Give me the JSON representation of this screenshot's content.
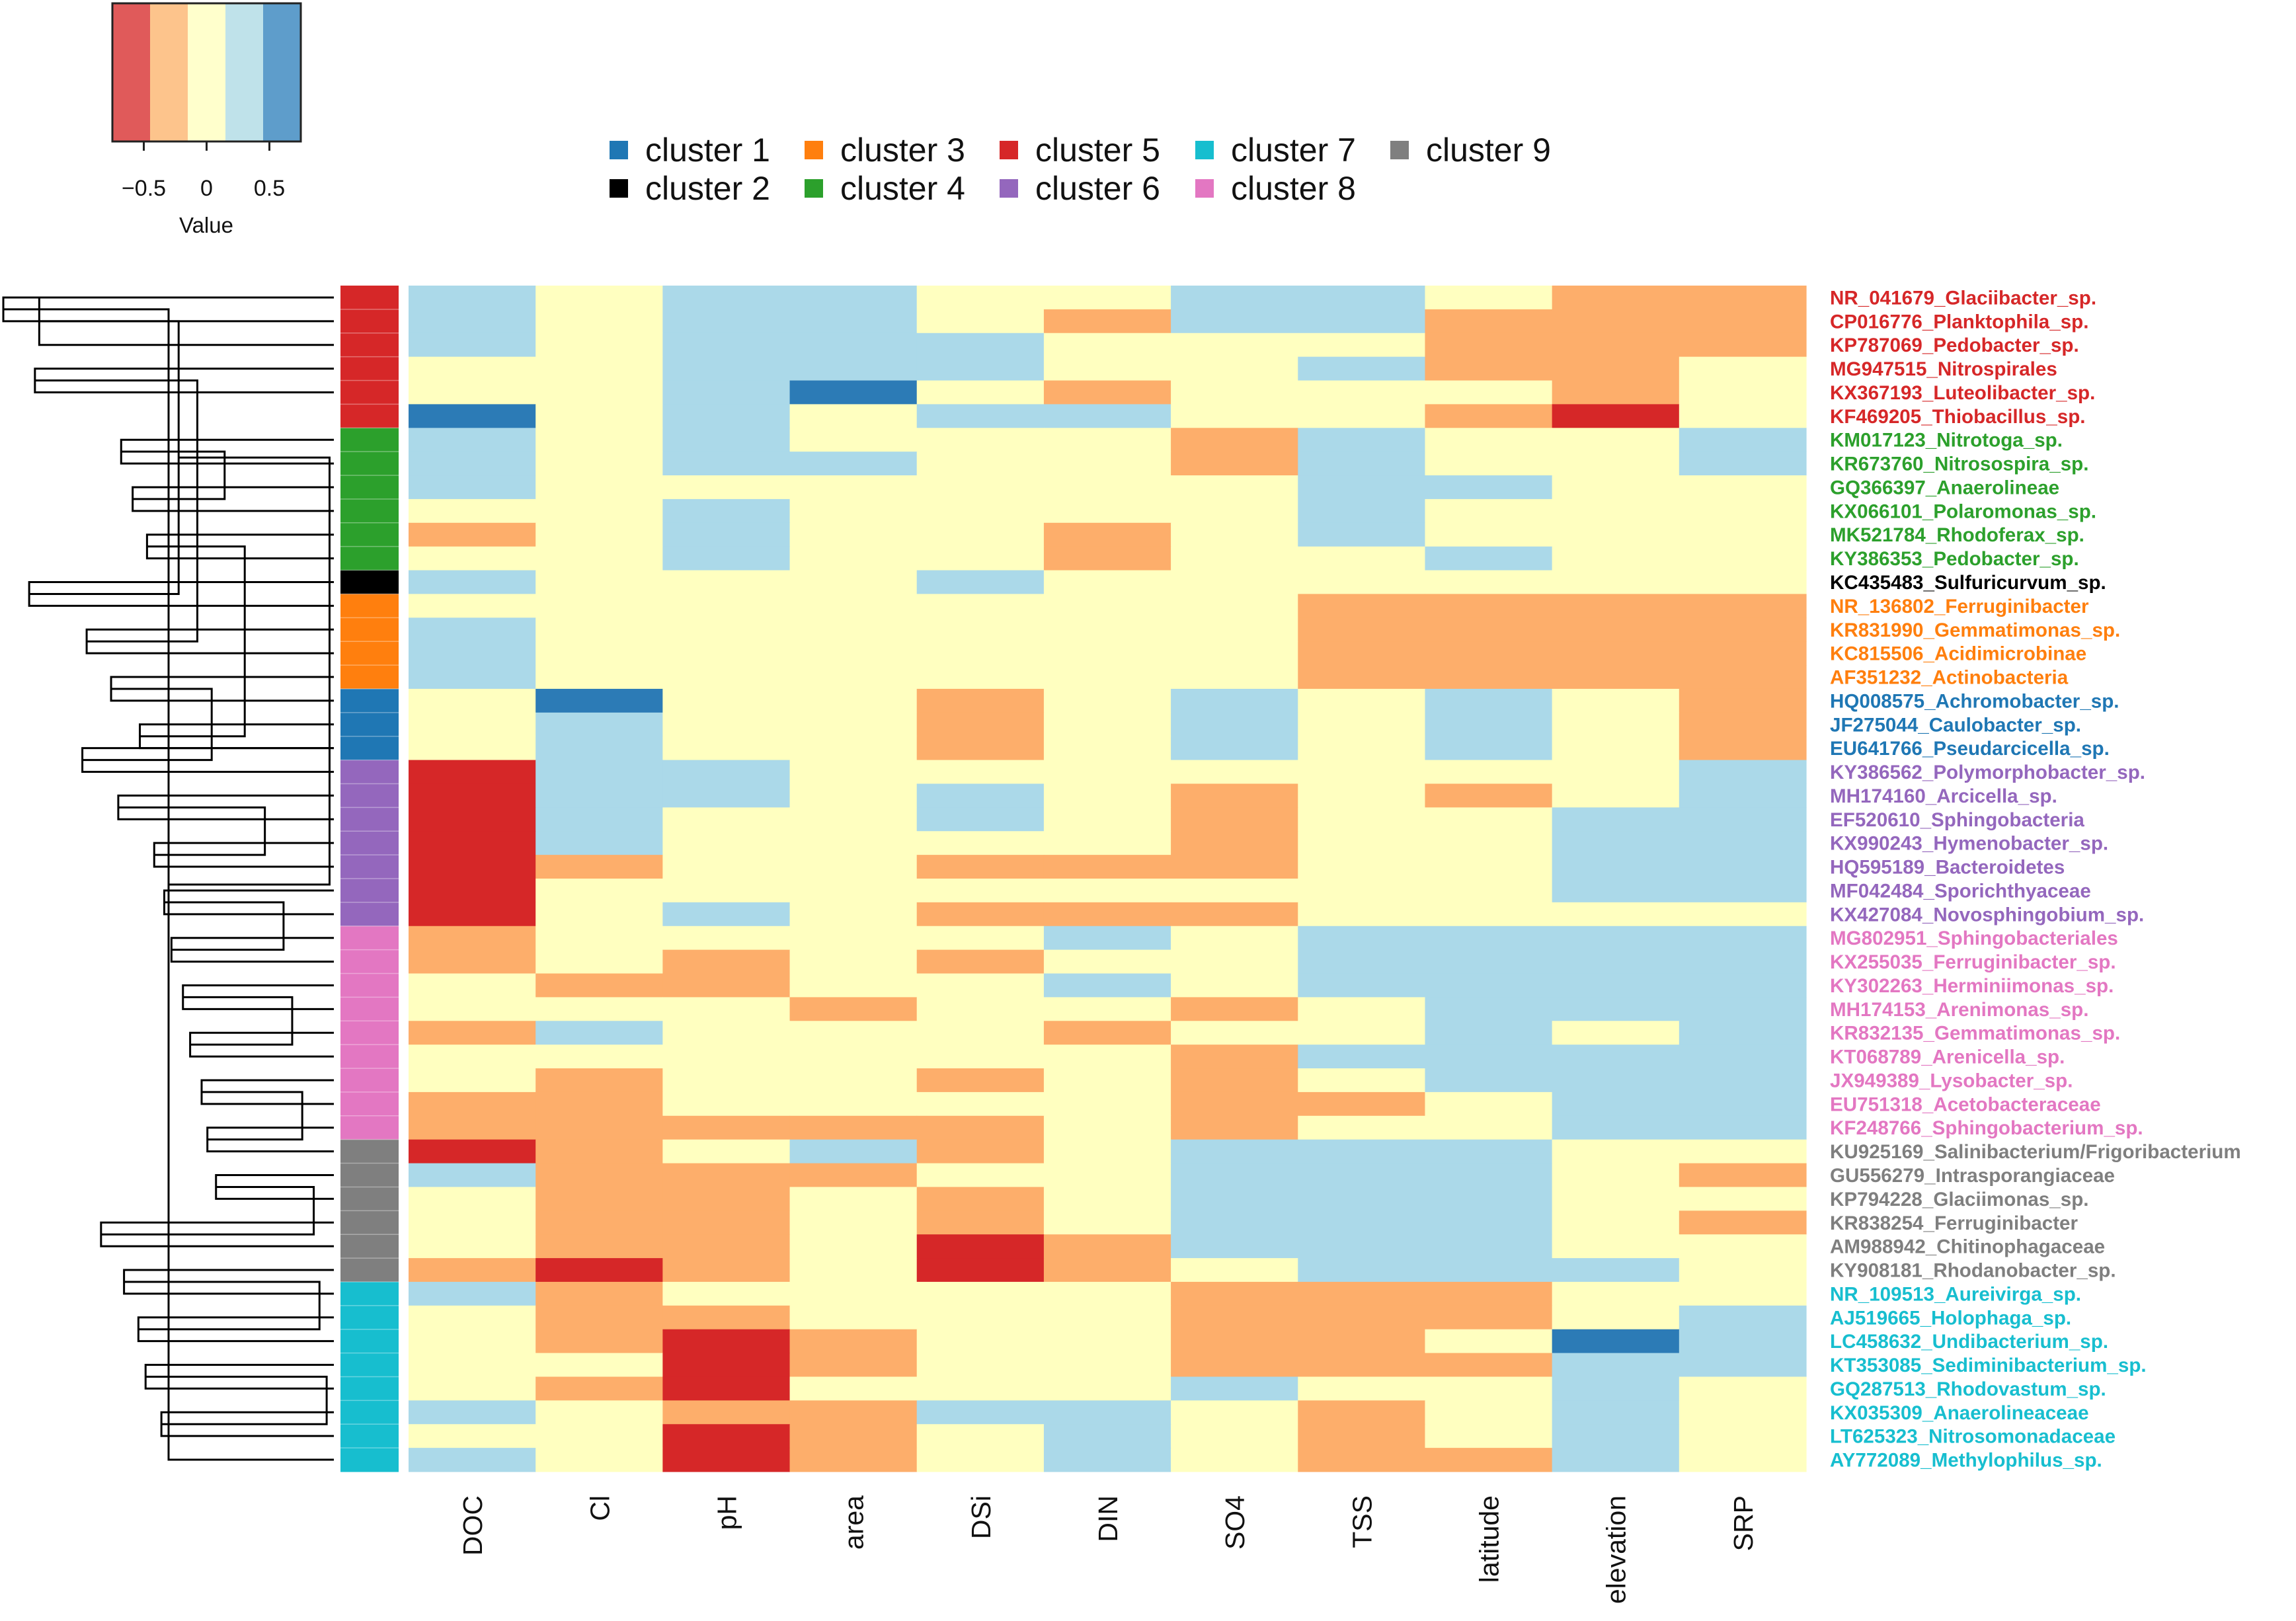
{
  "chart_data": {
    "type": "heatmap",
    "title": "",
    "colorkey": {
      "title": "Value",
      "tick_labels": [
        "−0.5",
        "0",
        "0.5"
      ],
      "ticks": [
        -0.5,
        0,
        0.5
      ],
      "range": [
        -0.75,
        0.75
      ],
      "bins": [
        {
          "from": -0.75,
          "to": -0.45,
          "color": "#e05a5a"
        },
        {
          "from": -0.45,
          "to": -0.15,
          "color": "#fdc48c"
        },
        {
          "from": -0.15,
          "to": 0.15,
          "color": "#ffffcc"
        },
        {
          "from": 0.15,
          "to": 0.45,
          "color": "#bfe2ea"
        },
        {
          "from": 0.45,
          "to": 0.75,
          "color": "#5e9dcb"
        }
      ]
    },
    "cell_colors": {
      "-2": "#d62728",
      "-1": "#fdae6b",
      "0": "#ffffc0",
      "1": "#abd9e9",
      "2": "#2c7bb6"
    },
    "cell_levels": [
      -2,
      -1,
      0,
      1,
      2
    ],
    "legend": [
      {
        "label": "cluster 1",
        "color": "#1f77b4"
      },
      {
        "label": "cluster 2",
        "color": "#000000"
      },
      {
        "label": "cluster 3",
        "color": "#ff7f0e"
      },
      {
        "label": "cluster 4",
        "color": "#2ca02c"
      },
      {
        "label": "cluster 5",
        "color": "#d62728"
      },
      {
        "label": "cluster 6",
        "color": "#9467bd"
      },
      {
        "label": "cluster 7",
        "color": "#17becf"
      },
      {
        "label": "cluster 8",
        "color": "#e377c2"
      },
      {
        "label": "cluster 9",
        "color": "#7f7f7f"
      }
    ],
    "columns": [
      "DOC",
      "Cl",
      "pH",
      "area",
      "DSi",
      "DIN",
      "SO4",
      "TSS",
      "latitude",
      "elevation",
      "SRP"
    ],
    "rows": [
      {
        "label": "NR_041679_Glaciibacter_sp.",
        "cluster": 5,
        "values": [
          1,
          0,
          1,
          1,
          0,
          0,
          1,
          1,
          0,
          -1,
          -1
        ]
      },
      {
        "label": "CP016776_Planktophila_sp.",
        "cluster": 5,
        "values": [
          1,
          0,
          1,
          1,
          0,
          -1,
          1,
          1,
          -1,
          -1,
          -1
        ]
      },
      {
        "label": "KP787069_Pedobacter_sp.",
        "cluster": 5,
        "values": [
          1,
          0,
          1,
          1,
          1,
          0,
          0,
          0,
          -1,
          -1,
          -1
        ]
      },
      {
        "label": "MG947515_Nitrospirales",
        "cluster": 5,
        "values": [
          0,
          0,
          1,
          1,
          1,
          0,
          0,
          1,
          -1,
          -1,
          0
        ]
      },
      {
        "label": "KX367193_Luteolibacter_sp.",
        "cluster": 5,
        "values": [
          0,
          0,
          1,
          2,
          0,
          -1,
          0,
          0,
          0,
          -1,
          0
        ]
      },
      {
        "label": "KF469205_Thiobacillus_sp.",
        "cluster": 5,
        "values": [
          2,
          0,
          1,
          0,
          1,
          1,
          0,
          0,
          -1,
          -2,
          0
        ]
      },
      {
        "label": "KM017123_Nitrotoga_sp.",
        "cluster": 4,
        "values": [
          1,
          0,
          1,
          0,
          0,
          0,
          -1,
          1,
          0,
          0,
          1
        ]
      },
      {
        "label": "KR673760_Nitrosospira_sp.",
        "cluster": 4,
        "values": [
          1,
          0,
          1,
          1,
          0,
          0,
          -1,
          1,
          0,
          0,
          1
        ]
      },
      {
        "label": "GQ366397_Anaerolineae",
        "cluster": 4,
        "values": [
          1,
          0,
          0,
          0,
          0,
          0,
          0,
          1,
          1,
          0,
          0
        ]
      },
      {
        "label": "KX066101_Polaromonas_sp.",
        "cluster": 4,
        "values": [
          0,
          0,
          1,
          0,
          0,
          0,
          0,
          1,
          0,
          0,
          0
        ]
      },
      {
        "label": "MK521784_Rhodoferax_sp.",
        "cluster": 4,
        "values": [
          -1,
          0,
          1,
          0,
          0,
          -1,
          0,
          1,
          0,
          0,
          0
        ]
      },
      {
        "label": "KY386353_Pedobacter_sp.",
        "cluster": 4,
        "values": [
          0,
          0,
          1,
          0,
          0,
          -1,
          0,
          0,
          1,
          0,
          0
        ]
      },
      {
        "label": "KC435483_Sulfuricurvum_sp.",
        "cluster": 2,
        "values": [
          1,
          0,
          0,
          0,
          1,
          0,
          0,
          0,
          0,
          0,
          0
        ]
      },
      {
        "label": "NR_136802_Ferruginibacter",
        "cluster": 3,
        "values": [
          0,
          0,
          0,
          0,
          0,
          0,
          0,
          -1,
          -1,
          -1,
          -1
        ]
      },
      {
        "label": "KR831990_Gemmatimonas_sp.",
        "cluster": 3,
        "values": [
          1,
          0,
          0,
          0,
          0,
          0,
          0,
          -1,
          -1,
          -1,
          -1
        ]
      },
      {
        "label": "KC815506_Acidimicrobinae",
        "cluster": 3,
        "values": [
          1,
          0,
          0,
          0,
          0,
          0,
          0,
          -1,
          -1,
          -1,
          -1
        ]
      },
      {
        "label": "AF351232_Actinobacteria",
        "cluster": 3,
        "values": [
          1,
          0,
          0,
          0,
          0,
          0,
          0,
          -1,
          -1,
          -1,
          -1
        ]
      },
      {
        "label": "HQ008575_Achromobacter_sp.",
        "cluster": 1,
        "values": [
          0,
          2,
          0,
          0,
          -1,
          0,
          1,
          0,
          1,
          0,
          -1
        ]
      },
      {
        "label": "JF275044_Caulobacter_sp.",
        "cluster": 1,
        "values": [
          0,
          1,
          0,
          0,
          -1,
          0,
          1,
          0,
          1,
          0,
          -1
        ]
      },
      {
        "label": "EU641766_Pseudarcicella_sp.",
        "cluster": 1,
        "values": [
          0,
          1,
          0,
          0,
          -1,
          0,
          1,
          0,
          1,
          0,
          -1
        ]
      },
      {
        "label": "KY386562_Polymorphobacter_sp.",
        "cluster": 6,
        "values": [
          -2,
          1,
          1,
          0,
          0,
          0,
          0,
          0,
          0,
          0,
          1
        ]
      },
      {
        "label": "MH174160_Arcicella_sp.",
        "cluster": 6,
        "values": [
          -2,
          1,
          1,
          0,
          1,
          0,
          -1,
          0,
          -1,
          0,
          1
        ]
      },
      {
        "label": "EF520610_Sphingobacteria",
        "cluster": 6,
        "values": [
          -2,
          1,
          0,
          0,
          1,
          0,
          -1,
          0,
          0,
          1,
          1
        ]
      },
      {
        "label": "KX990243_Hymenobacter_sp.",
        "cluster": 6,
        "values": [
          -2,
          1,
          0,
          0,
          0,
          0,
          -1,
          0,
          0,
          1,
          1
        ]
      },
      {
        "label": "HQ595189_Bacteroidetes",
        "cluster": 6,
        "values": [
          -2,
          -1,
          0,
          0,
          -1,
          -1,
          -1,
          0,
          0,
          1,
          1
        ]
      },
      {
        "label": "MF042484_Sporichthyaceae",
        "cluster": 6,
        "values": [
          -2,
          0,
          0,
          0,
          0,
          0,
          0,
          0,
          0,
          1,
          1
        ]
      },
      {
        "label": "KX427084_Novosphingobium_sp.",
        "cluster": 6,
        "values": [
          -2,
          0,
          1,
          0,
          -1,
          -1,
          -1,
          0,
          0,
          0,
          0
        ]
      },
      {
        "label": "MG802951_Sphingobacteriales",
        "cluster": 8,
        "values": [
          -1,
          0,
          0,
          0,
          0,
          1,
          0,
          1,
          1,
          1,
          1
        ]
      },
      {
        "label": "KX255035_Ferruginibacter_sp.",
        "cluster": 8,
        "values": [
          -1,
          0,
          -1,
          0,
          -1,
          0,
          0,
          1,
          1,
          1,
          1
        ]
      },
      {
        "label": "KY302263_Herminiimonas_sp.",
        "cluster": 8,
        "values": [
          0,
          -1,
          -1,
          0,
          0,
          1,
          0,
          1,
          1,
          1,
          1
        ]
      },
      {
        "label": "MH174153_Arenimonas_sp.",
        "cluster": 8,
        "values": [
          0,
          0,
          0,
          -1,
          0,
          0,
          -1,
          0,
          1,
          1,
          1
        ]
      },
      {
        "label": "KR832135_Gemmatimonas_sp.",
        "cluster": 8,
        "values": [
          -1,
          1,
          0,
          0,
          0,
          -1,
          0,
          0,
          1,
          0,
          1
        ]
      },
      {
        "label": "KT068789_Arenicella_sp.",
        "cluster": 8,
        "values": [
          0,
          0,
          0,
          0,
          0,
          0,
          -1,
          1,
          1,
          1,
          1
        ]
      },
      {
        "label": "JX949389_Lysobacter_sp.",
        "cluster": 8,
        "values": [
          0,
          -1,
          0,
          0,
          -1,
          0,
          -1,
          0,
          1,
          1,
          1
        ]
      },
      {
        "label": "EU751318_Acetobacteraceae",
        "cluster": 8,
        "values": [
          -1,
          -1,
          0,
          0,
          0,
          0,
          -1,
          -1,
          0,
          1,
          1
        ]
      },
      {
        "label": "KF248766_Sphingobacterium_sp.",
        "cluster": 8,
        "values": [
          -1,
          -1,
          -1,
          -1,
          -1,
          0,
          -1,
          0,
          0,
          1,
          1
        ]
      },
      {
        "label": "KU925169_Salinibacterium/Frigoribacterium",
        "cluster": 9,
        "values": [
          -2,
          -1,
          0,
          1,
          -1,
          0,
          1,
          1,
          1,
          0,
          0
        ]
      },
      {
        "label": "GU556279_Intrasporangiaceae",
        "cluster": 9,
        "values": [
          1,
          -1,
          -1,
          -1,
          0,
          0,
          1,
          1,
          1,
          0,
          -1
        ]
      },
      {
        "label": "KP794228_Glaciimonas_sp.",
        "cluster": 9,
        "values": [
          0,
          -1,
          -1,
          0,
          -1,
          0,
          1,
          1,
          1,
          0,
          0
        ]
      },
      {
        "label": "KR838254_Ferruginibacter",
        "cluster": 9,
        "values": [
          0,
          -1,
          -1,
          0,
          -1,
          0,
          1,
          1,
          1,
          0,
          -1
        ]
      },
      {
        "label": "AM988942_Chitinophagaceae",
        "cluster": 9,
        "values": [
          0,
          -1,
          -1,
          0,
          -2,
          -1,
          1,
          1,
          1,
          0,
          0
        ]
      },
      {
        "label": "KY908181_Rhodanobacter_sp.",
        "cluster": 9,
        "values": [
          -1,
          -2,
          -1,
          0,
          -2,
          -1,
          0,
          1,
          1,
          1,
          0
        ]
      },
      {
        "label": "NR_109513_Aureivirga_sp.",
        "cluster": 7,
        "values": [
          1,
          -1,
          0,
          0,
          0,
          0,
          -1,
          -1,
          -1,
          0,
          0
        ]
      },
      {
        "label": "AJ519665_Holophaga_sp.",
        "cluster": 7,
        "values": [
          0,
          -1,
          -1,
          0,
          0,
          0,
          -1,
          -1,
          -1,
          0,
          1
        ]
      },
      {
        "label": "LC458632_Undibacterium_sp.",
        "cluster": 7,
        "values": [
          0,
          -1,
          -2,
          -1,
          0,
          0,
          -1,
          -1,
          0,
          2,
          1
        ]
      },
      {
        "label": "KT353085_Sediminibacterium_sp.",
        "cluster": 7,
        "values": [
          0,
          0,
          -2,
          -1,
          0,
          0,
          -1,
          -1,
          -1,
          1,
          1
        ]
      },
      {
        "label": "GQ287513_Rhodovastum_sp.",
        "cluster": 7,
        "values": [
          0,
          -1,
          -2,
          0,
          0,
          0,
          1,
          0,
          0,
          1,
          0
        ]
      },
      {
        "label": "KX035309_Anaerolineaceae",
        "cluster": 7,
        "values": [
          1,
          0,
          -1,
          -1,
          1,
          1,
          0,
          -1,
          0,
          1,
          0
        ]
      },
      {
        "label": "LT625323_Nitrosomonadaceae",
        "cluster": 7,
        "values": [
          0,
          0,
          -2,
          -1,
          0,
          1,
          0,
          -1,
          0,
          1,
          0
        ]
      },
      {
        "label": "AY772089_Methylophilus_sp.",
        "cluster": 7,
        "values": [
          1,
          0,
          -2,
          -1,
          0,
          1,
          0,
          -1,
          -1,
          1,
          0
        ]
      }
    ],
    "row_dendrogram": [
      [
        0,
        1,
        230
      ],
      [
        12,
        13,
        212
      ],
      [
        0,
        2,
        205
      ],
      [
        3,
        4,
        208
      ],
      [
        14,
        15,
        172
      ],
      [
        16,
        17,
        155
      ],
      [
        19,
        20,
        175
      ],
      [
        6,
        7,
        148
      ],
      [
        8,
        9,
        140
      ],
      [
        10,
        11,
        130
      ],
      [
        18,
        19,
        135
      ],
      [
        21,
        22,
        150
      ],
      [
        23,
        24,
        125
      ],
      [
        25,
        26,
        118
      ],
      [
        27,
        28,
        113
      ],
      [
        29,
        30,
        105
      ],
      [
        31,
        32,
        100
      ],
      [
        33,
        34,
        92
      ],
      [
        35,
        36,
        88
      ],
      [
        37,
        38,
        82
      ],
      [
        39,
        40,
        162
      ],
      [
        41,
        42,
        146
      ],
      [
        43,
        44,
        136
      ],
      [
        45,
        46,
        131
      ],
      [
        47,
        48,
        120
      ],
      [
        49,
        50,
        115
      ],
      [
        51,
        52,
        108
      ],
      [
        53,
        54,
        95
      ],
      [
        55,
        56,
        85
      ],
      [
        57,
        58,
        76
      ],
      [
        59,
        60,
        62
      ],
      [
        61,
        62,
        48
      ],
      [
        63,
        64,
        35
      ],
      [
        65,
        66,
        29
      ],
      [
        67,
        68,
        22
      ],
      [
        69,
        70,
        14
      ],
      [
        71,
        72,
        10
      ],
      [
        73,
        74,
        5
      ],
      [
        75,
        76,
        3
      ]
    ]
  }
}
